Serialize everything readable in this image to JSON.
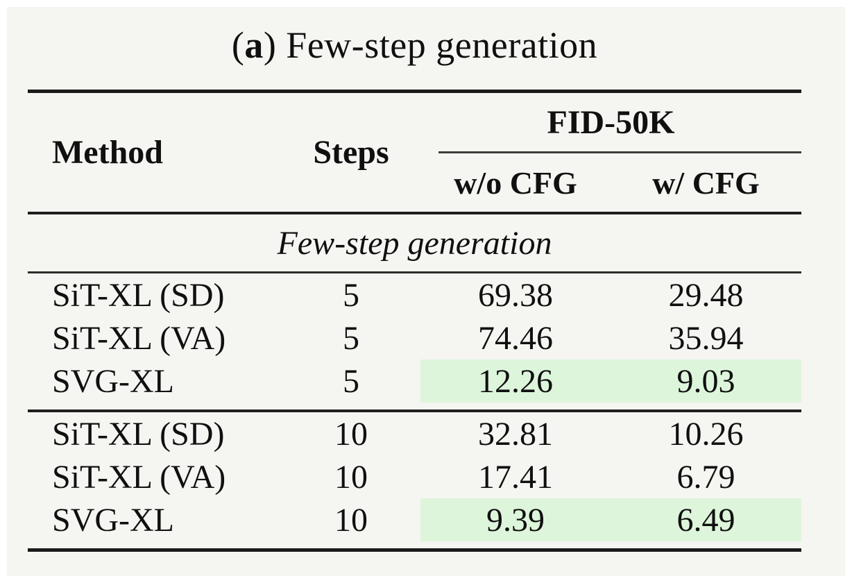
{
  "title": {
    "open": "(",
    "marker": "a",
    "rest": ") Few-step generation"
  },
  "table": {
    "header": {
      "method": "Method",
      "steps": "Steps",
      "group": "FID-50K",
      "sub1": "w/o CFG",
      "sub2": "w/ CFG"
    },
    "section": "Few-step generation",
    "rows": [
      {
        "method": "SiT-XL (SD)",
        "steps": "5",
        "wo_cfg": "69.38",
        "w_cfg": "29.48",
        "highlight": false
      },
      {
        "method": "SiT-XL (VA)",
        "steps": "5",
        "wo_cfg": "74.46",
        "w_cfg": "35.94",
        "highlight": false
      },
      {
        "method": "SVG-XL",
        "steps": "5",
        "wo_cfg": "12.26",
        "w_cfg": "9.03",
        "highlight": true
      },
      {
        "method": "SiT-XL (SD)",
        "steps": "10",
        "wo_cfg": "32.81",
        "w_cfg": "10.26",
        "highlight": false
      },
      {
        "method": "SiT-XL (VA)",
        "steps": "10",
        "wo_cfg": "17.41",
        "w_cfg": "6.79",
        "highlight": false
      },
      {
        "method": "SVG-XL",
        "steps": "10",
        "wo_cfg": "9.39",
        "w_cfg": "6.49",
        "highlight": true
      }
    ]
  },
  "colors": {
    "highlight_green": "#ddf5da",
    "background": "#f5f5f2",
    "text": "#101010",
    "rule": "#1a1a1a"
  }
}
